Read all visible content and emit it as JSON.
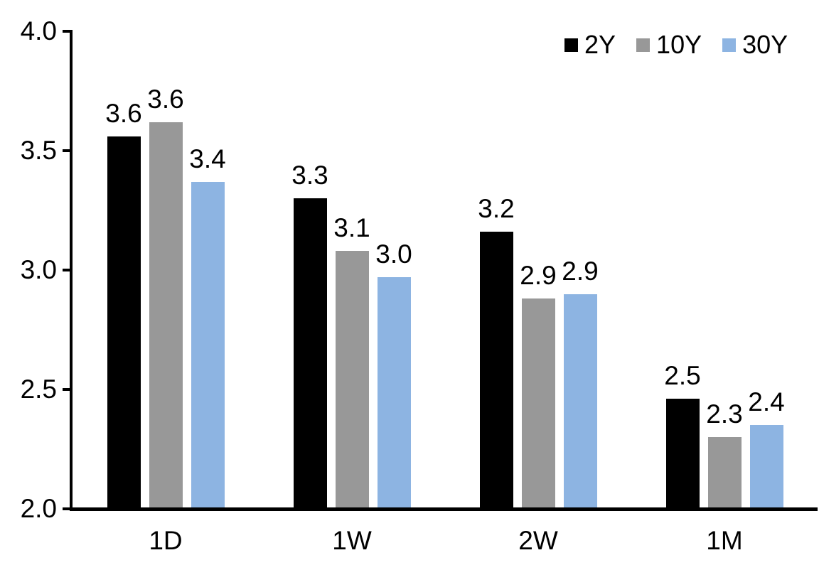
{
  "chart_data": {
    "type": "bar",
    "title": "",
    "xlabel": "",
    "ylabel": "",
    "categories": [
      "1D",
      "1W",
      "2W",
      "1M"
    ],
    "series": [
      {
        "name": "2Y",
        "color": "#000000",
        "values": [
          3.56,
          3.3,
          3.16,
          2.46
        ],
        "labels": [
          "3.6",
          "3.3",
          "3.2",
          "2.5"
        ]
      },
      {
        "name": "10Y",
        "color": "#989898",
        "values": [
          3.62,
          3.08,
          2.88,
          2.3
        ],
        "labels": [
          "3.6",
          "3.1",
          "2.9",
          "2.3"
        ]
      },
      {
        "name": "30Y",
        "color": "#8DB4E2",
        "values": [
          3.37,
          2.97,
          2.9,
          2.35
        ],
        "labels": [
          "3.4",
          "3.0",
          "2.9",
          "2.4"
        ]
      }
    ],
    "ylim": [
      2.0,
      4.0
    ],
    "yticks": [
      {
        "value": 4.0,
        "label": "4.0"
      },
      {
        "value": 3.5,
        "label": "3.5"
      },
      {
        "value": 3.0,
        "label": "3.0"
      },
      {
        "value": 2.5,
        "label": "2.5"
      },
      {
        "value": 2.0,
        "label": "2.0"
      }
    ],
    "legend_position": "top-right",
    "grid": false,
    "axis_color": "#000000",
    "background_color": "#FFFFFF",
    "label_color": "#000000"
  }
}
